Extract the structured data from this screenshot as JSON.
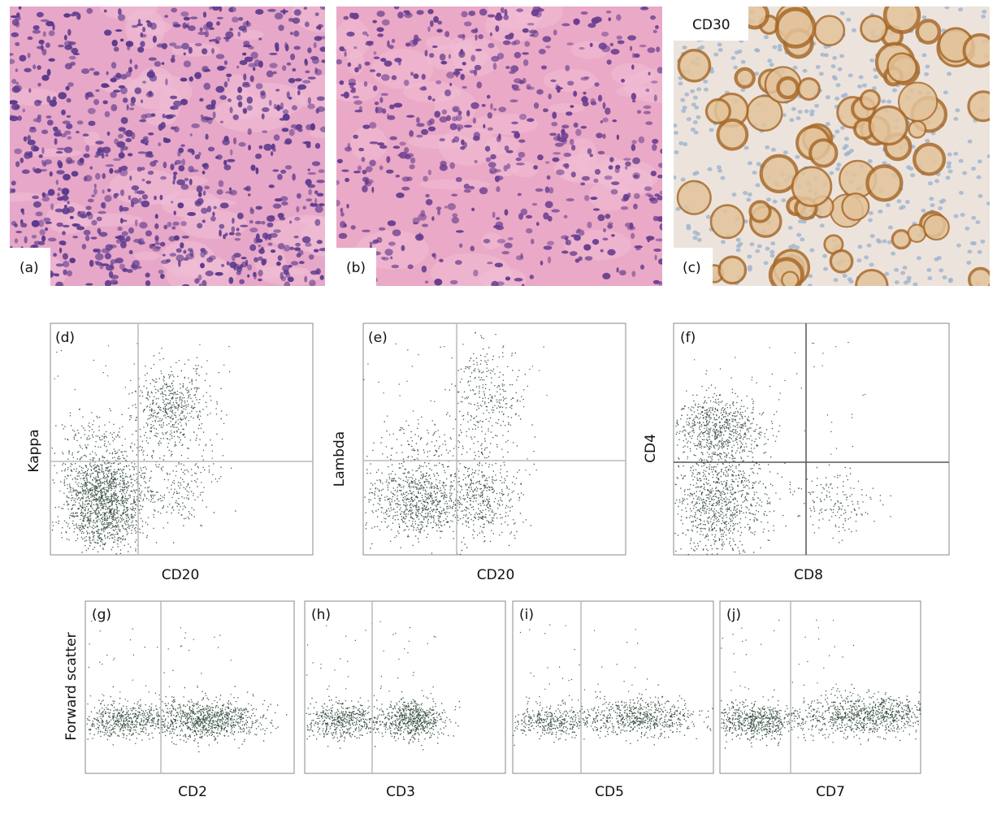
{
  "micrographs": [
    {
      "label": "(a)"
    },
    {
      "label": "(b)"
    },
    {
      "label": "(c)",
      "stain": "CD30"
    }
  ],
  "flow_plots": [
    {
      "label": "(d)",
      "x_label": "CD20",
      "y_label": "Kappa"
    },
    {
      "label": "(e)",
      "x_label": "CD20",
      "y_label": "Lambda"
    },
    {
      "label": "(f)",
      "x_label": "CD8",
      "y_label": "CD4"
    },
    {
      "label": "(g)",
      "x_label": "CD2",
      "y_label": "Forward scatter"
    },
    {
      "label": "(h)",
      "x_label": "CD3"
    },
    {
      "label": "(i)",
      "x_label": "CD5"
    },
    {
      "label": "(j)",
      "x_label": "CD7"
    }
  ]
}
